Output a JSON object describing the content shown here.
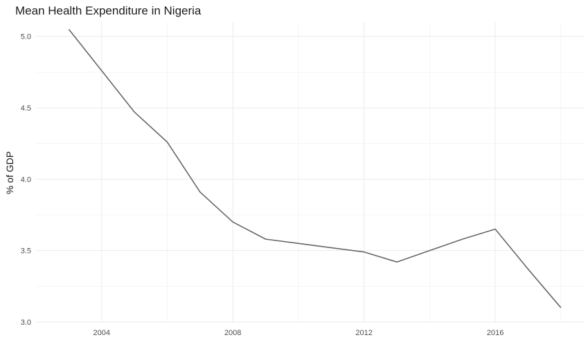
{
  "chart_data": {
    "type": "line",
    "title": "Mean Health Expenditure in Nigeria",
    "xlabel": "",
    "ylabel": "% of GDP",
    "x": [
      2003,
      2004,
      2005,
      2006,
      2007,
      2008,
      2009,
      2010,
      2011,
      2012,
      2013,
      2014,
      2015,
      2016,
      2017,
      2018
    ],
    "series": [
      {
        "values": [
          5.05,
          4.76,
          4.47,
          4.26,
          3.91,
          3.7,
          3.58,
          3.55,
          3.52,
          3.49,
          3.42,
          3.5,
          3.58,
          3.65,
          3.37,
          3.1
        ]
      }
    ],
    "x_ticks": [
      "2004",
      "2008",
      "2012",
      "2016"
    ],
    "y_ticks": [
      "3.0",
      "3.5",
      "4.0",
      "4.5",
      "5.0"
    ],
    "xlim": [
      2002.0,
      2018.7
    ],
    "ylim": [
      3.0,
      5.1
    ],
    "grid": true,
    "colors": {
      "line": "#666666",
      "grid": "#ebebeb",
      "grid_minor": "#f2f2f2"
    }
  }
}
